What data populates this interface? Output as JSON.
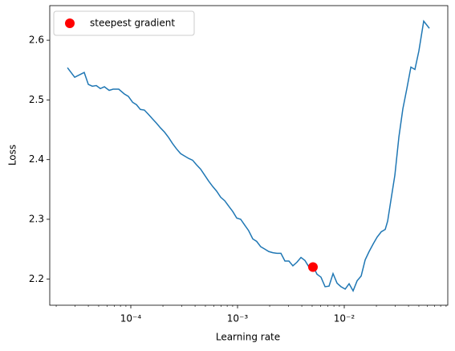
{
  "chart_data": {
    "type": "line",
    "xlabel": "Learning rate",
    "ylabel": "Loss",
    "xscale": "log",
    "xlim": [
      1.74e-05,
      0.0933
    ],
    "ylim": [
      2.156,
      2.658
    ],
    "xticks": [
      {
        "value": 0.0001,
        "label": "10⁻⁴"
      },
      {
        "value": 0.001,
        "label": "10⁻³"
      },
      {
        "value": 0.01,
        "label": "10⁻²"
      }
    ],
    "yticks": [
      2.2,
      2.3,
      2.4,
      2.5,
      2.6
    ],
    "legend": "upper left",
    "series": [
      {
        "kind": "line",
        "color": "#1f77b4",
        "x": [
          2.55e-05,
          2.98e-05,
          3.66e-05,
          4e-05,
          4.36e-05,
          4.75e-05,
          5.18e-05,
          5.65e-05,
          6.27e-05,
          6.83e-05,
          7.71e-05,
          8.7e-05,
          9.48e-05,
          0.000104,
          0.000113,
          0.000123,
          0.000134,
          0.000146,
          0.00016,
          0.000174,
          0.00019,
          0.000207,
          0.000226,
          0.000246,
          0.000268,
          0.000293,
          0.000319,
          0.000348,
          0.000379,
          0.000414,
          0.000451,
          0.000492,
          0.000536,
          0.000585,
          0.000638,
          0.000695,
          0.000759,
          0.000827,
          0.000902,
          0.000983,
          0.00107,
          0.00117,
          0.00127,
          0.00139,
          0.00151,
          0.00165,
          0.0018,
          0.00196,
          0.00214,
          0.00234,
          0.00255,
          0.00278,
          0.00303,
          0.0033,
          0.0036,
          0.00393,
          0.00428,
          0.00467,
          0.00509,
          0.00555,
          0.00605,
          0.00661,
          0.0072,
          0.00785,
          0.00856,
          0.00933,
          0.0102,
          0.0111,
          0.0121,
          0.0132,
          0.0144,
          0.0157,
          0.0171,
          0.0187,
          0.0203,
          0.0222,
          0.0242,
          0.0255,
          0.0273,
          0.0298,
          0.0325,
          0.0354,
          0.0386,
          0.0421,
          0.0459,
          0.05,
          0.0555,
          0.0627
        ],
        "values": [
          2.554,
          2.538,
          2.546,
          2.526,
          2.523,
          2.524,
          2.519,
          2.522,
          2.516,
          2.518,
          2.518,
          2.51,
          2.506,
          2.496,
          2.492,
          2.484,
          2.483,
          2.476,
          2.468,
          2.461,
          2.453,
          2.446,
          2.437,
          2.427,
          2.418,
          2.41,
          2.406,
          2.402,
          2.399,
          2.391,
          2.384,
          2.374,
          2.364,
          2.355,
          2.347,
          2.337,
          2.331,
          2.322,
          2.313,
          2.302,
          2.3,
          2.29,
          2.281,
          2.267,
          2.263,
          2.254,
          2.25,
          2.246,
          2.244,
          2.243,
          2.243,
          2.23,
          2.23,
          2.222,
          2.228,
          2.236,
          2.231,
          2.22,
          2.222,
          2.208,
          2.203,
          2.187,
          2.188,
          2.209,
          2.193,
          2.187,
          2.183,
          2.192,
          2.18,
          2.197,
          2.205,
          2.232,
          2.246,
          2.259,
          2.27,
          2.279,
          2.283,
          2.297,
          2.331,
          2.374,
          2.438,
          2.485,
          2.519,
          2.555,
          2.551,
          2.582,
          2.632,
          2.62
        ]
      },
      {
        "kind": "point",
        "name": "steepest gradient",
        "color": "#ff0000",
        "x": [
          0.00509
        ],
        "values": [
          2.22
        ]
      }
    ]
  }
}
